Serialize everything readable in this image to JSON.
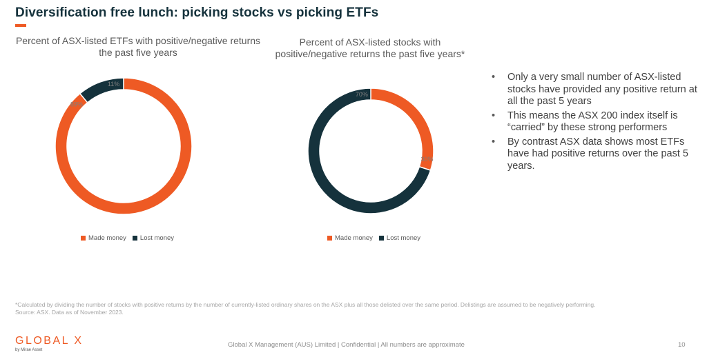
{
  "slide": {
    "title": "Diversification free lunch: picking stocks vs picking ETFs",
    "bullets": [
      "Only a very small number of ASX-listed stocks have provided any positive return at all the past 5 years",
      "This means the ASX 200 index itself is “carried” by these strong performers",
      "By contrast ASX data shows most ETFs have had positive returns over the past 5 years."
    ],
    "bullet_symbol": "•",
    "footnote": "*Calculated by dividing the number of stocks with positive returns by the number of currently-listed ordinary shares on the ASX plus all those delisted over the same period. Delistings are assumed to be negatively performing.",
    "source": "Source: ASX. Data as of November 2023.",
    "logo_text": "GLOBAL X",
    "logo_sub": "by Mirae Asset",
    "confidential": "Global X Management (AUS) Limited | Confidential | All numbers are approximate",
    "page_number": "10"
  },
  "colors": {
    "made_money": "#ee5a24",
    "lost_money": "#15323c",
    "accent": "#ee5a24"
  },
  "chart_data": [
    {
      "type": "pie",
      "variant": "donut",
      "title": "Percent of ASX-listed ETFs with positive/negative returns the past five years",
      "categories": [
        "Made money",
        "Lost money"
      ],
      "values": [
        89,
        11
      ],
      "labels": [
        "89%",
        "11%"
      ],
      "legend": "bottom"
    },
    {
      "type": "pie",
      "variant": "donut",
      "title": "Percent of ASX-listed stocks with positive/negative returns the past five years*",
      "categories": [
        "Made money",
        "Lost money"
      ],
      "values": [
        30,
        70
      ],
      "labels": [
        "30%",
        "70%"
      ],
      "legend": "bottom"
    }
  ]
}
